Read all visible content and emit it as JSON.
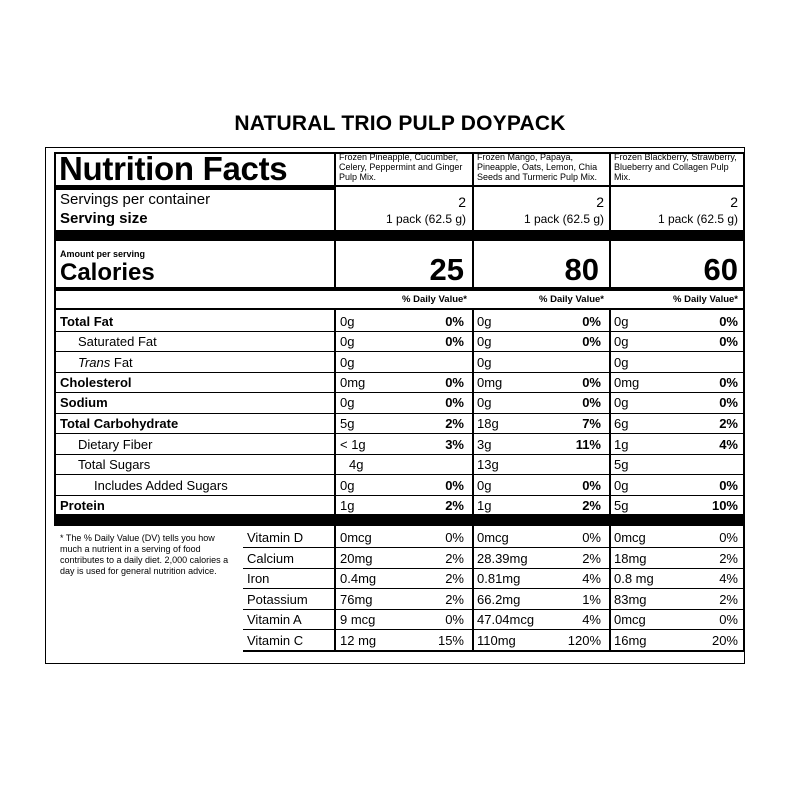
{
  "page_title": "NATURAL TRIO PULP DOYPACK",
  "panel_title": "Nutrition Facts",
  "products": [
    {
      "description": "Frozen Pineapple, Cucumber, Celery, Peppermint and Ginger Pulp Mix.",
      "servings": "2",
      "serving_size": "1 pack (62.5 g)",
      "calories": "25",
      "nutrients": [
        {
          "amount": "0g",
          "dv": "0%"
        },
        {
          "amount": "0g",
          "dv": "0%"
        },
        {
          "amount": "0g",
          "dv": ""
        },
        {
          "amount": "0mg",
          "dv": "0%"
        },
        {
          "amount": "0g",
          "dv": "0%"
        },
        {
          "amount": "5g",
          "dv": "2%"
        },
        {
          "amount": "< 1g",
          "dv": "3%"
        },
        {
          "amount": "4g",
          "dv": ""
        },
        {
          "amount": "0g",
          "dv": "0%"
        },
        {
          "amount": "1g",
          "dv": "2%"
        }
      ],
      "vitamins": [
        {
          "amount": "0mcg",
          "dv": "0%"
        },
        {
          "amount": "20mg",
          "dv": "2%"
        },
        {
          "amount": "0.4mg",
          "dv": "2%"
        },
        {
          "amount": "76mg",
          "dv": "2%"
        },
        {
          "amount": "9 mcg",
          "dv": "0%"
        },
        {
          "amount": "12 mg",
          "dv": "15%"
        }
      ]
    },
    {
      "description": "Frozen Mango, Papaya, Pineapple, Oats, Lemon, Chia Seeds and Turmeric Pulp Mix.",
      "servings": "2",
      "serving_size": "1 pack (62.5 g)",
      "calories": "80",
      "nutrients": [
        {
          "amount": "0g",
          "dv": "0%"
        },
        {
          "amount": "0g",
          "dv": "0%"
        },
        {
          "amount": "0g",
          "dv": ""
        },
        {
          "amount": "0mg",
          "dv": "0%"
        },
        {
          "amount": "0g",
          "dv": "0%"
        },
        {
          "amount": "18g",
          "dv": "7%"
        },
        {
          "amount": "3g",
          "dv": "11%"
        },
        {
          "amount": "13g",
          "dv": ""
        },
        {
          "amount": "0g",
          "dv": "0%"
        },
        {
          "amount": "1g",
          "dv": "2%"
        }
      ],
      "vitamins": [
        {
          "amount": "0mcg",
          "dv": "0%"
        },
        {
          "amount": "28.39mg",
          "dv": "2%"
        },
        {
          "amount": "0.81mg",
          "dv": "4%"
        },
        {
          "amount": "66.2mg",
          "dv": "1%"
        },
        {
          "amount": "47.04mcg",
          "dv": "4%"
        },
        {
          "amount": "110mg",
          "dv": "120%"
        }
      ]
    },
    {
      "description": "Frozen Blackberry, Strawberry, Blueberry and Collagen Pulp Mix.",
      "servings": "2",
      "serving_size": "1 pack (62.5 g)",
      "calories": "60",
      "nutrients": [
        {
          "amount": "0g",
          "dv": "0%"
        },
        {
          "amount": "0g",
          "dv": "0%"
        },
        {
          "amount": "0g",
          "dv": ""
        },
        {
          "amount": "0mg",
          "dv": "0%"
        },
        {
          "amount": "0g",
          "dv": "0%"
        },
        {
          "amount": "6g",
          "dv": "2%"
        },
        {
          "amount": "1g",
          "dv": "4%"
        },
        {
          "amount": "5g",
          "dv": ""
        },
        {
          "amount": "0g",
          "dv": "0%"
        },
        {
          "amount": "5g",
          "dv": "10%"
        }
      ],
      "vitamins": [
        {
          "amount": "0mcg",
          "dv": "0%"
        },
        {
          "amount": "18mg",
          "dv": "2%"
        },
        {
          "amount": "0.8 mg",
          "dv": "4%"
        },
        {
          "amount": "83mg",
          "dv": "2%"
        },
        {
          "amount": "0mcg",
          "dv": "0%"
        },
        {
          "amount": "16mg",
          "dv": "20%"
        }
      ]
    }
  ],
  "servings_label": "Servings per container",
  "serving_size_label": "Serving size",
  "amount_per_serving": "Amount per serving",
  "calories_label": "Calories",
  "dv_header": "% Daily Value*",
  "nutrient_labels": {
    "total_fat": "Total Fat",
    "saturated_fat": "Saturated Fat",
    "trans": "Trans",
    "fat": " Fat",
    "cholesterol": "Cholesterol",
    "sodium": "Sodium",
    "total_carb": "Total Carbohydrate",
    "dietary_fiber": "Dietary Fiber",
    "total_sugars": "Total Sugars",
    "added_sugars": "Includes Added Sugars",
    "protein": "Protein"
  },
  "vitamin_labels": [
    "Vitamin D",
    "Calcium",
    "Iron",
    "Potassium",
    "Vitamin A",
    "Vitamin C"
  ],
  "footnote": "* The % Daily Value (DV) tells you how much a nutrient in a serving of food contributes to a daily diet. 2,000 calories a day is used for general nutrition advice."
}
